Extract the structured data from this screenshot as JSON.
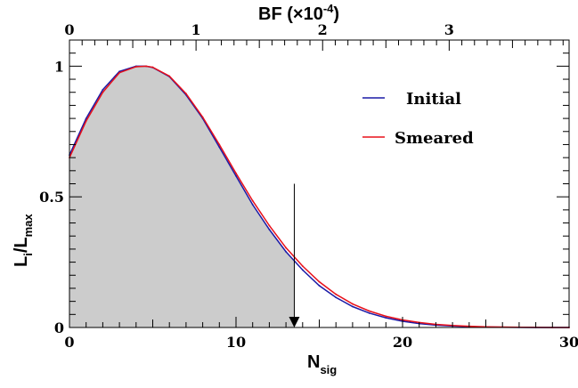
{
  "chart_data": {
    "type": "line",
    "title": "",
    "xlabel": "N",
    "xlabel_sub": "sig",
    "ylabel_parts": {
      "main": "L",
      "sub1": "i",
      "slash": "/L",
      "sub2": "max"
    },
    "top_axis": {
      "label_main": "BF (",
      "label_times": "×10",
      "label_exp": "-4",
      "label_close": ")",
      "ticks": [
        0,
        1,
        2,
        3
      ],
      "tick_labels": [
        "0",
        "1",
        "2",
        "3"
      ],
      "nsig_per_unit": 7.6
    },
    "xlim": [
      0,
      30
    ],
    "ylim": [
      0,
      1.1
    ],
    "x_ticks": [
      0,
      10,
      20,
      30
    ],
    "x_tick_labels": [
      "0",
      "10",
      "20",
      "30"
    ],
    "y_ticks": [
      0,
      0.5,
      1
    ],
    "y_tick_labels": [
      "0",
      "0.5",
      "1"
    ],
    "grid": false,
    "legend_position": "top-right",
    "series": [
      {
        "name": "Initial",
        "color": "#1a1aa6",
        "x": [
          0,
          1,
          2,
          3,
          4,
          4.6,
          5,
          6,
          7,
          8,
          9,
          10,
          11,
          12,
          13,
          14,
          15,
          16,
          17,
          18,
          19,
          20,
          21,
          22,
          23,
          24,
          25,
          26,
          27,
          28,
          29,
          30
        ],
        "y": [
          0.66,
          0.8,
          0.91,
          0.98,
          1.0,
          1.0,
          0.995,
          0.96,
          0.89,
          0.8,
          0.69,
          0.58,
          0.47,
          0.375,
          0.29,
          0.22,
          0.16,
          0.115,
          0.08,
          0.055,
          0.037,
          0.024,
          0.015,
          0.009,
          0.0055,
          0.0032,
          0.0018,
          0.001,
          0.0005,
          0.0002,
          0.0001,
          0.0
        ]
      },
      {
        "name": "Smeared",
        "color": "#e8101a",
        "x": [
          0,
          1,
          2,
          3,
          4,
          4.6,
          5,
          6,
          7,
          8,
          9,
          10,
          11,
          12,
          13,
          14,
          15,
          16,
          17,
          18,
          19,
          20,
          21,
          22,
          23,
          24,
          25,
          26,
          27,
          28,
          29,
          30
        ],
        "y": [
          0.65,
          0.79,
          0.9,
          0.975,
          0.998,
          1.0,
          0.996,
          0.962,
          0.895,
          0.805,
          0.7,
          0.59,
          0.485,
          0.39,
          0.305,
          0.235,
          0.175,
          0.127,
          0.09,
          0.063,
          0.043,
          0.029,
          0.019,
          0.012,
          0.0075,
          0.0045,
          0.0027,
          0.0015,
          0.0008,
          0.0004,
          0.0002,
          0.0
        ]
      }
    ],
    "shaded_region": {
      "from": 0,
      "to": 13.5,
      "color": "#cccccc"
    },
    "upper_limit_arrow": {
      "x": 13.5,
      "y_top": 0.55
    }
  }
}
